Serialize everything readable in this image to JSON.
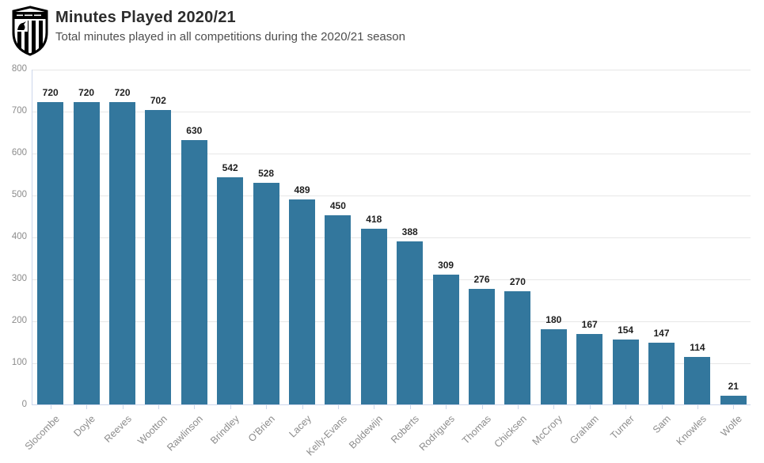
{
  "header": {
    "logo_icon": "club-crest-shield-icon"
  },
  "chart_data": {
    "type": "bar",
    "title": "Minutes Played 2020/21",
    "subtitle": "Total minutes played in all competitions during the 2020/21 season",
    "categories": [
      "Slocombe",
      "Doyle",
      "Reeves",
      "Wootton",
      "Rawlinson",
      "Brindley",
      "O'Brien",
      "Lacey",
      "Kelly-Evans",
      "Boldewijn",
      "Roberts",
      "Rodrigues",
      "Thomas",
      "Chicksen",
      "McCrory",
      "Graham",
      "Turner",
      "Sam",
      "Knowles",
      "Wolfe"
    ],
    "values": [
      720,
      720,
      720,
      702,
      630,
      542,
      528,
      489,
      450,
      418,
      388,
      309,
      276,
      270,
      180,
      167,
      154,
      147,
      114,
      21
    ],
    "xlabel": "",
    "ylabel": "",
    "ylim": [
      0,
      800
    ],
    "ytick_step": 100,
    "grid": true,
    "legend": "none",
    "value_labels": true
  },
  "colors": {
    "bar": "#33779d",
    "grid": "#e7e7e7",
    "axis": "#ccd6eb",
    "tick_label": "#8c8c8c",
    "value_label": "#1f1f1f",
    "title": "#2d2d2d",
    "subtitle": "#4e4e4e",
    "crest": "#000000"
  }
}
